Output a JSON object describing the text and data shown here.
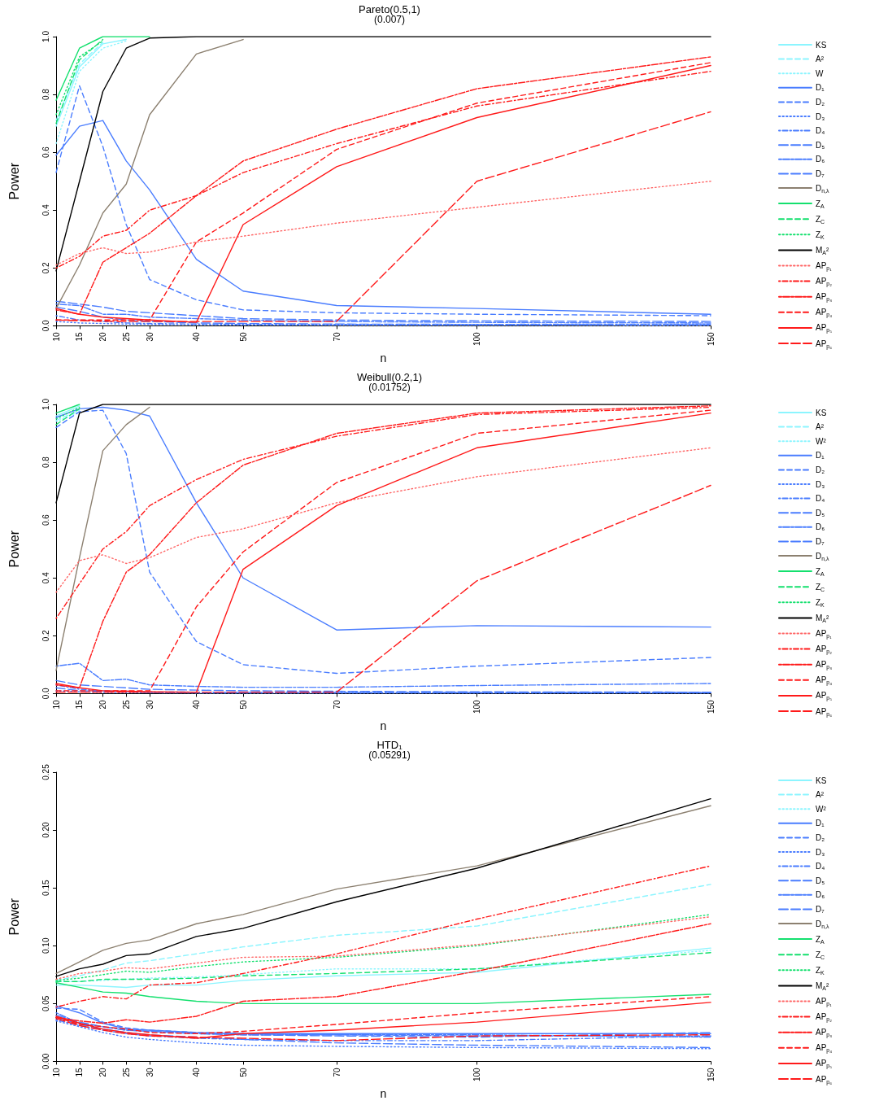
{
  "chart_data": [
    {
      "type": "line",
      "title": "Pareto(0.5,1)",
      "subtitle": "(0.007)",
      "xlabel": "n",
      "ylabel": "Power",
      "legend": "right",
      "x": [
        10,
        15,
        20,
        25,
        30,
        40,
        50,
        70,
        100,
        150
      ],
      "xlim": [
        10,
        150
      ],
      "xticks": [
        10,
        15,
        20,
        25,
        30,
        40,
        50,
        70,
        100,
        150
      ],
      "ylim": [
        0,
        1
      ],
      "yticks": [
        {
          "value": 0,
          "label": "0.0"
        },
        {
          "value": 0.2,
          "label": "0.2"
        },
        {
          "value": 0.4,
          "label": "0.4"
        },
        {
          "value": 0.6,
          "label": "0.6"
        },
        {
          "value": 0.8,
          "label": "0.8"
        },
        {
          "value": 1,
          "label": "1.0"
        }
      ],
      "series": [
        {
          "name": "KS",
          "color": "#8cf5ff",
          "line_style": "solid",
          "values": [
            0.69,
            0.895,
            0.975,
            0.99,
            null,
            null,
            null,
            null,
            null,
            null
          ]
        },
        {
          "name": "A²",
          "color": "#8cf5ff",
          "line_style": "dashed",
          "values": [
            0.71,
            0.905,
            0.98,
            null,
            null,
            null,
            null,
            null,
            null,
            null
          ]
        },
        {
          "name": "W",
          "color": "#8cf5ff",
          "line_style": "dotted",
          "values": [
            0.63,
            0.88,
            0.96,
            0.985,
            null,
            null,
            null,
            null,
            null,
            null
          ]
        },
        {
          "name": "D₁",
          "color": "#4a7dff",
          "line_style": "solid",
          "values": [
            0.59,
            0.69,
            0.71,
            0.57,
            0.47,
            0.23,
            0.12,
            0.07,
            0.06,
            0.04
          ]
        },
        {
          "name": "D₂",
          "color": "#4a7dff",
          "line_style": "dashed",
          "values": [
            0.53,
            0.83,
            0.62,
            0.35,
            0.16,
            0.09,
            0.055,
            0.045,
            0.04,
            0.035
          ]
        },
        {
          "name": "D₃",
          "color": "#4a7dff",
          "line_style": "dotted",
          "values": [
            0.015,
            0.01,
            0.008,
            0.006,
            0.005,
            0.004,
            0.003,
            0.002,
            0.002,
            0.001
          ]
        },
        {
          "name": "D₄",
          "color": "#4a7dff",
          "line_style": "dashdot",
          "values": [
            0.035,
            0.02,
            0.015,
            0.01,
            0.008,
            0.006,
            0.005,
            0.005,
            0.005,
            0.006
          ]
        },
        {
          "name": "D₅",
          "color": "#4a7dff",
          "line_style": "longdash",
          "values": [
            0.085,
            0.075,
            0.065,
            0.05,
            0.045,
            0.035,
            0.025,
            0.02,
            0.017,
            0.015
          ]
        },
        {
          "name": "D₆",
          "color": "#4a7dff",
          "line_style": "twodash",
          "values": [
            0.075,
            0.07,
            0.04,
            0.04,
            0.03,
            0.025,
            0.02,
            0.015,
            0.012,
            0.01
          ]
        },
        {
          "name": "D₇",
          "color": "#4a7dff",
          "line_style": "longdash",
          "values": [
            0.065,
            0.05,
            0.03,
            0.02,
            0.015,
            0.01,
            0.008,
            0.006,
            0.005,
            0.004
          ]
        },
        {
          "name": "D$_{n,λ}$",
          "color": "#8c8070",
          "line_style": "solid",
          "values": [
            0.06,
            0.21,
            0.39,
            0.49,
            0.73,
            0.94,
            0.99,
            null,
            null,
            null
          ]
        },
        {
          "name": "Z$_{A}$",
          "color": "#14e06e",
          "line_style": "solid",
          "values": [
            0.78,
            0.96,
            1,
            1,
            1,
            null,
            null,
            null,
            null,
            null
          ]
        },
        {
          "name": "Z$_{C}$",
          "color": "#14e06e",
          "line_style": "dashed",
          "values": [
            0.7,
            0.92,
            0.99,
            null,
            null,
            null,
            null,
            null,
            null,
            null
          ]
        },
        {
          "name": "Z$_{K}$",
          "color": "#14e06e",
          "line_style": "dotted",
          "values": [
            0.73,
            0.93,
            0.985,
            null,
            null,
            null,
            null,
            null,
            null,
            null
          ]
        },
        {
          "name": "M$_{A}$²",
          "color": "#000000",
          "line_style": "solid",
          "values": [
            0.19,
            0.5,
            0.81,
            0.96,
            0.995,
            1,
            1,
            1,
            1,
            1
          ]
        },
        {
          "name": "AP$_{p₁}$",
          "color": "#ff6666",
          "line_style": "dotted",
          "values": [
            0.21,
            0.25,
            0.27,
            0.25,
            0.255,
            0.29,
            0.31,
            0.355,
            0.41,
            0.5
          ]
        },
        {
          "name": "AP$_{p₂}$",
          "color": "#ff1a1a",
          "line_style": "dashdot",
          "values": [
            0.2,
            0.24,
            0.31,
            0.33,
            0.4,
            0.45,
            0.53,
            0.63,
            0.76,
            0.88
          ]
        },
        {
          "name": "AP$_{p₃}$",
          "color": "#ff1a1a",
          "line_style": "twodash",
          "values": [
            0.055,
            0.04,
            0.22,
            0.27,
            0.32,
            0.45,
            0.57,
            0.68,
            0.82,
            0.93
          ]
        },
        {
          "name": "AP$_{p₄}$",
          "color": "#ff1a1a",
          "line_style": "dashed",
          "values": [
            0.02,
            0.02,
            0.02,
            0.02,
            0.02,
            0.29,
            0.39,
            0.61,
            0.77,
            0.91
          ]
        },
        {
          "name": "AP$_{p₅}$",
          "color": "#ff1a1a",
          "line_style": "solid",
          "values": [
            0.06,
            0.04,
            0.03,
            0.025,
            0.02,
            0.012,
            0.35,
            0.55,
            0.72,
            0.9
          ]
        },
        {
          "name": "AP$_{p₆}$",
          "color": "#ff1a1a",
          "line_style": "longdash",
          "values": [
            0.02,
            0.018,
            0.016,
            0.015,
            0.015,
            0.015,
            0.015,
            0.015,
            0.5,
            0.74
          ]
        }
      ]
    },
    {
      "type": "line",
      "title": "Weibull(0.2,1)",
      "subtitle": "(0.01752)",
      "xlabel": "n",
      "ylabel": "Power",
      "legend": "right",
      "x": [
        10,
        15,
        20,
        25,
        30,
        40,
        50,
        70,
        100,
        150
      ],
      "xlim": [
        10,
        150
      ],
      "xticks": [
        10,
        15,
        20,
        25,
        30,
        40,
        50,
        70,
        100,
        150
      ],
      "ylim": [
        0,
        1
      ],
      "yticks": [
        {
          "value": 0,
          "label": "0.0"
        },
        {
          "value": 0.2,
          "label": "0.2"
        },
        {
          "value": 0.4,
          "label": "0.4"
        },
        {
          "value": 0.6,
          "label": "0.6"
        },
        {
          "value": 0.8,
          "label": "0.8"
        },
        {
          "value": 1,
          "label": "1.0"
        }
      ],
      "series": [
        {
          "name": "KS",
          "color": "#8cf5ff",
          "line_style": "solid",
          "values": [
            0.96,
            0.995,
            null,
            null,
            null,
            null,
            null,
            null,
            null,
            null
          ]
        },
        {
          "name": "A²",
          "color": "#8cf5ff",
          "line_style": "dashed",
          "values": [
            0.945,
            0.98,
            null,
            null,
            null,
            null,
            null,
            null,
            null,
            null
          ]
        },
        {
          "name": "W²",
          "color": "#8cf5ff",
          "line_style": "dotted",
          "values": [
            0.94,
            0.975,
            null,
            null,
            null,
            null,
            null,
            null,
            null,
            null
          ]
        },
        {
          "name": "D₁",
          "color": "#4a7dff",
          "line_style": "solid",
          "values": [
            0.955,
            0.985,
            0.99,
            0.98,
            0.96,
            0.66,
            0.4,
            0.22,
            0.235,
            0.23
          ]
        },
        {
          "name": "D₂",
          "color": "#4a7dff",
          "line_style": "dashed",
          "values": [
            0.92,
            0.975,
            0.98,
            0.83,
            0.42,
            0.18,
            0.1,
            0.07,
            0.095,
            0.125
          ]
        },
        {
          "name": "D₃",
          "color": "#4a7dff",
          "line_style": "dotted",
          "values": [
            0.01,
            0.006,
            0.004,
            0.003,
            0.003,
            0.002,
            0.002,
            0.002,
            0.002,
            0.002
          ]
        },
        {
          "name": "D₄",
          "color": "#4a7dff",
          "line_style": "dashdot",
          "values": [
            0.03,
            0.015,
            0.01,
            0.008,
            0.006,
            0.005,
            0.004,
            0.004,
            0.004,
            0.004
          ]
        },
        {
          "name": "D₅",
          "color": "#4a7dff",
          "line_style": "longdash",
          "values": [
            0.045,
            0.03,
            0.025,
            0.02,
            0.015,
            0.012,
            0.01,
            0.008,
            0.006,
            0.005
          ]
        },
        {
          "name": "D₆",
          "color": "#4a7dff",
          "line_style": "twodash",
          "values": [
            0.095,
            0.105,
            0.045,
            0.05,
            0.03,
            0.025,
            0.022,
            0.022,
            0.028,
            0.035
          ]
        },
        {
          "name": "D₇",
          "color": "#4a7dff",
          "line_style": "longdash",
          "values": [
            0.02,
            0.01,
            0.008,
            0.006,
            0.004,
            0.004,
            0.003,
            0.003,
            0.003,
            0.003
          ]
        },
        {
          "name": "D$_{n,λ}$",
          "color": "#8c8070",
          "line_style": "solid",
          "values": [
            0.08,
            0.47,
            0.84,
            0.93,
            0.99,
            null,
            null,
            null,
            null,
            null
          ]
        },
        {
          "name": "Z$_{A}$",
          "color": "#14e06e",
          "line_style": "solid",
          "values": [
            0.97,
            1,
            null,
            null,
            null,
            null,
            null,
            null,
            null,
            null
          ]
        },
        {
          "name": "Z$_{C}$",
          "color": "#14e06e",
          "line_style": "dashed",
          "values": [
            0.93,
            0.985,
            null,
            null,
            null,
            null,
            null,
            null,
            null,
            null
          ]
        },
        {
          "name": "Z$_{K}$",
          "color": "#14e06e",
          "line_style": "dotted",
          "values": [
            0.95,
            0.99,
            null,
            null,
            null,
            null,
            null,
            null,
            null,
            null
          ]
        },
        {
          "name": "M$_{A}$²",
          "color": "#000000",
          "line_style": "solid",
          "values": [
            0.66,
            0.97,
            1,
            1,
            1,
            1,
            1,
            1,
            1,
            1
          ]
        },
        {
          "name": "AP$_{p₁}$",
          "color": "#ff6666",
          "line_style": "dotted",
          "values": [
            0.35,
            0.46,
            0.48,
            0.45,
            0.47,
            0.54,
            0.57,
            0.66,
            0.75,
            0.85
          ]
        },
        {
          "name": "AP$_{p₂}$",
          "color": "#ff1a1a",
          "line_style": "dashdot",
          "values": [
            0.26,
            0.38,
            0.5,
            0.56,
            0.65,
            0.74,
            0.81,
            0.89,
            0.965,
            0.99
          ]
        },
        {
          "name": "AP$_{p₃}$",
          "color": "#ff1a1a",
          "line_style": "twodash",
          "values": [
            0.03,
            0.02,
            0.25,
            0.42,
            0.48,
            0.66,
            0.79,
            0.9,
            0.97,
            0.995
          ]
        },
        {
          "name": "AP$_{p₄}$",
          "color": "#ff1a1a",
          "line_style": "dashed",
          "values": [
            0.01,
            0.01,
            0.01,
            0.01,
            0.01,
            0.3,
            0.49,
            0.73,
            0.9,
            0.98
          ]
        },
        {
          "name": "AP$_{p₅}$",
          "color": "#ff1a1a",
          "line_style": "solid",
          "values": [
            0.035,
            0.02,
            0.01,
            0.008,
            0.006,
            0.005,
            0.43,
            0.65,
            0.85,
            0.97
          ]
        },
        {
          "name": "AP$_{p₆}$",
          "color": "#ff1a1a",
          "line_style": "longdash",
          "values": [
            0.005,
            0.005,
            0.005,
            0.005,
            0.005,
            0.005,
            0.005,
            0.005,
            0.39,
            0.72
          ]
        }
      ]
    },
    {
      "type": "line",
      "title": "HTD₁",
      "subtitle": "(0.05291)",
      "xlabel": "n",
      "ylabel": "Power",
      "legend": "right",
      "x": [
        10,
        15,
        20,
        25,
        30,
        40,
        50,
        70,
        100,
        150
      ],
      "xlim": [
        10,
        150
      ],
      "xticks": [
        10,
        15,
        20,
        25,
        30,
        40,
        50,
        70,
        100,
        150
      ],
      "ylim": [
        0,
        0.25
      ],
      "yticks": [
        {
          "value": 0,
          "label": "0.00"
        },
        0.05,
        {
          "value": 0.1,
          "label": "0.10"
        },
        0.15,
        {
          "value": 0.2,
          "label": "0.20"
        },
        0.25
      ],
      "series": [
        {
          "name": "KS",
          "color": "#8cf5ff",
          "line_style": "solid",
          "values": [
            0.066,
            0.066,
            0.065,
            0.064,
            0.066,
            0.066,
            0.07,
            0.074,
            0.077,
            0.098
          ]
        },
        {
          "name": "A²",
          "color": "#8cf5ff",
          "line_style": "dashed",
          "values": [
            0.07,
            0.074,
            0.079,
            0.085,
            0.087,
            0.093,
            0.099,
            0.109,
            0.117,
            0.153
          ]
        },
        {
          "name": "W²",
          "color": "#8cf5ff",
          "line_style": "dotted",
          "values": [
            0.069,
            0.069,
            0.07,
            0.071,
            0.072,
            0.073,
            0.075,
            0.08,
            0.08,
            0.096
          ]
        },
        {
          "name": "D₁",
          "color": "#4a7dff",
          "line_style": "solid",
          "values": [
            0.048,
            0.042,
            0.033,
            0.028,
            0.027,
            0.025,
            0.024,
            0.024,
            0.024,
            0.024
          ]
        },
        {
          "name": "D₂",
          "color": "#4a7dff",
          "line_style": "dashed",
          "values": [
            0.046,
            0.045,
            0.034,
            0.029,
            0.027,
            0.025,
            0.024,
            0.023,
            0.022,
            0.022
          ]
        },
        {
          "name": "D₃",
          "color": "#4a7dff",
          "line_style": "dotted",
          "values": [
            0.035,
            0.03,
            0.025,
            0.021,
            0.019,
            0.016,
            0.014,
            0.013,
            0.012,
            0.011
          ]
        },
        {
          "name": "D₄",
          "color": "#4a7dff",
          "line_style": "dashdot",
          "values": [
            0.036,
            0.031,
            0.027,
            0.024,
            0.022,
            0.02,
            0.019,
            0.018,
            0.018,
            0.022
          ]
        },
        {
          "name": "D₅",
          "color": "#4a7dff",
          "line_style": "longdash",
          "values": [
            0.04,
            0.034,
            0.03,
            0.027,
            0.026,
            0.024,
            0.023,
            0.022,
            0.021,
            0.025
          ]
        },
        {
          "name": "D₆",
          "color": "#4a7dff",
          "line_style": "twodash",
          "values": [
            0.042,
            0.033,
            0.03,
            0.027,
            0.026,
            0.024,
            0.023,
            0.023,
            0.023,
            0.021
          ]
        },
        {
          "name": "D₇",
          "color": "#4a7dff",
          "line_style": "longdash",
          "values": [
            0.038,
            0.032,
            0.028,
            0.025,
            0.023,
            0.021,
            0.019,
            0.016,
            0.014,
            0.012
          ]
        },
        {
          "name": "D$_{n,λ}$",
          "color": "#8c8070",
          "line_style": "solid",
          "values": [
            0.076,
            0.086,
            0.096,
            0.102,
            0.105,
            0.119,
            0.127,
            0.149,
            0.169,
            0.221
          ]
        },
        {
          "name": "Z$_{A}$",
          "color": "#14e06e",
          "line_style": "solid",
          "values": [
            0.068,
            0.064,
            0.06,
            0.059,
            0.056,
            0.052,
            0.05,
            0.05,
            0.05,
            0.058
          ]
        },
        {
          "name": "Z$_{C}$",
          "color": "#14e06e",
          "line_style": "dashed",
          "values": [
            0.069,
            0.069,
            0.071,
            0.071,
            0.071,
            0.072,
            0.074,
            0.076,
            0.08,
            0.094
          ]
        },
        {
          "name": "Z$_{K}$",
          "color": "#14e06e",
          "line_style": "dotted",
          "values": [
            0.07,
            0.072,
            0.075,
            0.078,
            0.077,
            0.082,
            0.086,
            0.09,
            0.1,
            0.127
          ]
        },
        {
          "name": "M$_{A}$²",
          "color": "#000000",
          "line_style": "solid",
          "values": [
            0.0735,
            0.08,
            0.084,
            0.0915,
            0.093,
            0.108,
            0.115,
            0.138,
            0.167,
            0.227
          ]
        },
        {
          "name": "AP$_{p₁}$",
          "color": "#ff6666",
          "line_style": "dotted",
          "values": [
            0.071,
            0.076,
            0.078,
            0.081,
            0.08,
            0.085,
            0.09,
            0.091,
            0.101,
            0.125
          ]
        },
        {
          "name": "AP$_{p₂}$",
          "color": "#ff1a1a",
          "line_style": "dashdot",
          "values": [
            0.047,
            0.052,
            0.056,
            0.054,
            0.066,
            0.068,
            0.076,
            0.093,
            0.123,
            0.169
          ]
        },
        {
          "name": "AP$_{p₃}$",
          "color": "#ff1a1a",
          "line_style": "twodash",
          "values": [
            0.038,
            0.035,
            0.033,
            0.036,
            0.034,
            0.039,
            0.052,
            0.056,
            0.078,
            0.119
          ]
        },
        {
          "name": "AP$_{p₄}$",
          "color": "#ff1a1a",
          "line_style": "dashed",
          "values": [
            0.038,
            0.032,
            0.03,
            0.028,
            0.025,
            0.024,
            0.026,
            0.032,
            0.042,
            0.056
          ]
        },
        {
          "name": "AP$_{p₅}$",
          "color": "#ff1a1a",
          "line_style": "solid",
          "values": [
            0.039,
            0.033,
            0.028,
            0.025,
            0.023,
            0.02,
            0.024,
            0.027,
            0.034,
            0.051
          ]
        },
        {
          "name": "AP$_{p₆}$",
          "color": "#ff1a1a",
          "line_style": "longdash",
          "values": [
            0.037,
            0.031,
            0.027,
            0.024,
            0.022,
            0.021,
            0.02,
            0.018,
            0.022,
            0.023
          ]
        }
      ]
    }
  ]
}
